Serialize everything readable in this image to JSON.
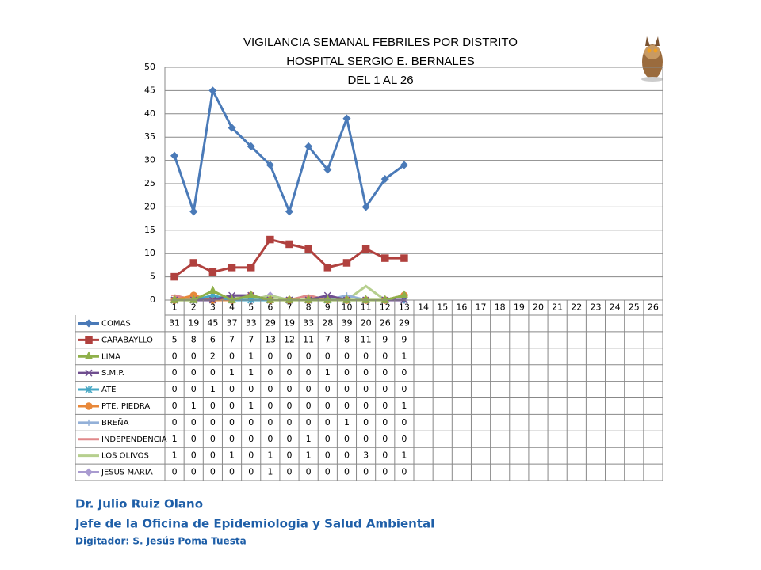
{
  "chart_data": {
    "type": "line",
    "title": [
      "VIGILANCIA SEMANAL FEBRILES POR DISTRITO",
      "HOSPITAL SERGIO E. BERNALES",
      "DEL 1 AL 26"
    ],
    "categories": [
      1,
      2,
      3,
      4,
      5,
      6,
      7,
      8,
      9,
      10,
      11,
      12,
      13,
      14,
      15,
      16,
      17,
      18,
      19,
      20,
      21,
      22,
      23,
      24,
      25,
      26
    ],
    "ylim": [
      0,
      50
    ],
    "yticks": [
      0,
      5,
      10,
      15,
      20,
      25,
      30,
      35,
      40,
      45,
      50
    ],
    "grid": true,
    "series": [
      {
        "name": "COMAS",
        "color": "#4a7ab8",
        "marker": "diamond",
        "values": [
          31,
          19,
          45,
          37,
          33,
          29,
          19,
          33,
          28,
          39,
          20,
          26,
          29,
          null,
          null,
          null,
          null,
          null,
          null,
          null,
          null,
          null,
          null,
          null,
          null,
          null
        ]
      },
      {
        "name": "CARABAYLLO",
        "color": "#b0413e",
        "marker": "square",
        "values": [
          5,
          8,
          6,
          7,
          7,
          13,
          12,
          11,
          7,
          8,
          11,
          9,
          9,
          null,
          null,
          null,
          null,
          null,
          null,
          null,
          null,
          null,
          null,
          null,
          null,
          null
        ]
      },
      {
        "name": "LIMA",
        "color": "#8fb04a",
        "marker": "triangle",
        "values": [
          0,
          0,
          2,
          0,
          1,
          0,
          0,
          0,
          0,
          0,
          0,
          0,
          1,
          null,
          null,
          null,
          null,
          null,
          null,
          null,
          null,
          null,
          null,
          null,
          null,
          null
        ]
      },
      {
        "name": "S.M.P.",
        "color": "#6f4e8f",
        "marker": "x",
        "values": [
          0,
          0,
          0,
          1,
          1,
          0,
          0,
          0,
          1,
          0,
          0,
          0,
          0,
          null,
          null,
          null,
          null,
          null,
          null,
          null,
          null,
          null,
          null,
          null,
          null,
          null
        ]
      },
      {
        "name": "ATE",
        "color": "#46a7c4",
        "marker": "star",
        "values": [
          0,
          0,
          1,
          0,
          0,
          0,
          0,
          0,
          0,
          0,
          0,
          0,
          0,
          null,
          null,
          null,
          null,
          null,
          null,
          null,
          null,
          null,
          null,
          null,
          null,
          null
        ]
      },
      {
        "name": "PTE. PIEDRA",
        "color": "#e8883a",
        "marker": "circle",
        "values": [
          0,
          1,
          0,
          0,
          1,
          0,
          0,
          0,
          0,
          0,
          0,
          0,
          1,
          null,
          null,
          null,
          null,
          null,
          null,
          null,
          null,
          null,
          null,
          null,
          null,
          null
        ]
      },
      {
        "name": "BREÑA",
        "color": "#93b0d8",
        "marker": "plus",
        "values": [
          0,
          0,
          0,
          0,
          0,
          0,
          0,
          0,
          0,
          1,
          0,
          0,
          0,
          null,
          null,
          null,
          null,
          null,
          null,
          null,
          null,
          null,
          null,
          null,
          null,
          null
        ]
      },
      {
        "name": "INDEPENDENCIA",
        "color": "#e0888a",
        "marker": "dash",
        "values": [
          1,
          0,
          0,
          0,
          0,
          0,
          0,
          1,
          0,
          0,
          0,
          0,
          0,
          null,
          null,
          null,
          null,
          null,
          null,
          null,
          null,
          null,
          null,
          null,
          null,
          null
        ]
      },
      {
        "name": "LOS OLIVOS",
        "color": "#b6cf8e",
        "marker": "none",
        "values": [
          1,
          0,
          0,
          1,
          0,
          1,
          0,
          1,
          0,
          0,
          3,
          0,
          1,
          null,
          null,
          null,
          null,
          null,
          null,
          null,
          null,
          null,
          null,
          null,
          null,
          null
        ]
      },
      {
        "name": "JESUS MARIA",
        "color": "#a99bd0",
        "marker": "diamond",
        "values": [
          0,
          0,
          0,
          0,
          0,
          1,
          0,
          0,
          0,
          0,
          0,
          0,
          0,
          null,
          null,
          null,
          null,
          null,
          null,
          null,
          null,
          null,
          null,
          null,
          null,
          null
        ]
      }
    ]
  },
  "footer": {
    "author": "Dr.  Julio Ruiz Olano",
    "role": "Jefe de la Oficina de Epidemiologia y  Salud Ambiental",
    "typist": "Digitador: S. Jesús Poma Tuesta"
  }
}
